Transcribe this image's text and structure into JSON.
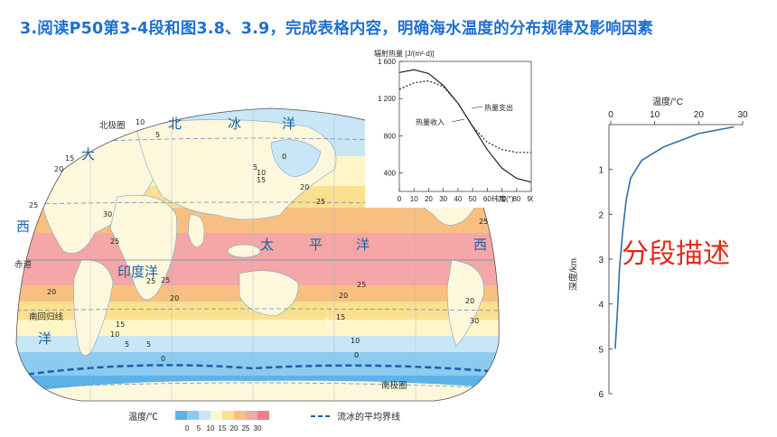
{
  "title": "3.阅读P50第3-4段和图3.8、3.9，完成表格内容，明确海水温度的分布规律及影响因素",
  "map": {
    "ocean_labels": [
      "北",
      "冰",
      "洋",
      "大",
      "西",
      "洋",
      "印度洋",
      "太",
      "平",
      "洋",
      "西"
    ],
    "line_labels": {
      "equator": "赤道",
      "tropic_south": "南回归线",
      "antarctic_circle": "南极圈",
      "arctic_circle": "北极圈"
    },
    "isotherm_labels": [
      "10",
      "5",
      "15",
      "20",
      "25",
      "25",
      "20",
      "15",
      "0",
      "5",
      "10",
      "20",
      "25",
      "30",
      "25",
      "25",
      "20",
      "15",
      "10",
      "5",
      "0",
      "25",
      "20",
      "15",
      "10",
      "5",
      "0",
      "20",
      "30",
      "25"
    ],
    "legend": {
      "title": "温度/℃",
      "ticks": [
        "0",
        "5",
        "10",
        "15",
        "20",
        "25",
        "30"
      ],
      "colors": [
        "#5bb3e8",
        "#8ccbef",
        "#c8e6f5",
        "#fff6c8",
        "#fbe08f",
        "#f7c081",
        "#f4a7a6",
        "#ef7f8a"
      ],
      "ice_label": "流冰的平均界线"
    },
    "colors": {
      "land": "#fdf7dc",
      "water_cold": "#5bb3e8",
      "water_warm": "#f4a7a6",
      "ice_line": "#1a5fa8"
    }
  },
  "chart1": {
    "ylabel": "辐射热量 [J/(m²·d)]",
    "yticks": [
      "1 600",
      "1 200",
      "800",
      "400"
    ],
    "xticks": [
      "0",
      "10",
      "20",
      "30",
      "40",
      "50",
      "60",
      "70",
      "80",
      "90"
    ],
    "xlabel": "纬度(°)",
    "label_out": "热量支出",
    "label_in": "热量收入"
  },
  "chart1_data": {
    "type": "line",
    "x": [
      0,
      10,
      20,
      30,
      40,
      50,
      60,
      70,
      80,
      90
    ],
    "ylim": [
      200,
      1600
    ],
    "series": [
      {
        "name": "热量收入",
        "values": [
          1480,
          1510,
          1470,
          1340,
          1150,
          900,
          650,
          450,
          340,
          300
        ]
      },
      {
        "name": "热量支出",
        "values": [
          1300,
          1370,
          1390,
          1330,
          1150,
          900,
          730,
          650,
          620,
          620
        ]
      }
    ]
  },
  "chart2": {
    "xlabel": "温度/°C",
    "xticks": [
      "0",
      "10",
      "20",
      "30"
    ],
    "ylabel": "深度/km",
    "yticks": [
      "1",
      "2",
      "3",
      "4",
      "5",
      "6"
    ]
  },
  "chart_data": {
    "type": "line",
    "title": "",
    "xlabel": "温度/°C",
    "ylabel": "深度/km",
    "xlim": [
      0,
      30
    ],
    "ylim": [
      0,
      6
    ],
    "x": [
      28,
      20,
      12,
      7,
      4.5,
      3.5,
      2.8,
      2,
      1.5,
      1
    ],
    "series": [
      {
        "values": [
          0.05,
          0.2,
          0.5,
          0.8,
          1.2,
          1.7,
          2.3,
          3.2,
          4.2,
          5
        ]
      }
    ]
  },
  "annotation": "分段描述"
}
